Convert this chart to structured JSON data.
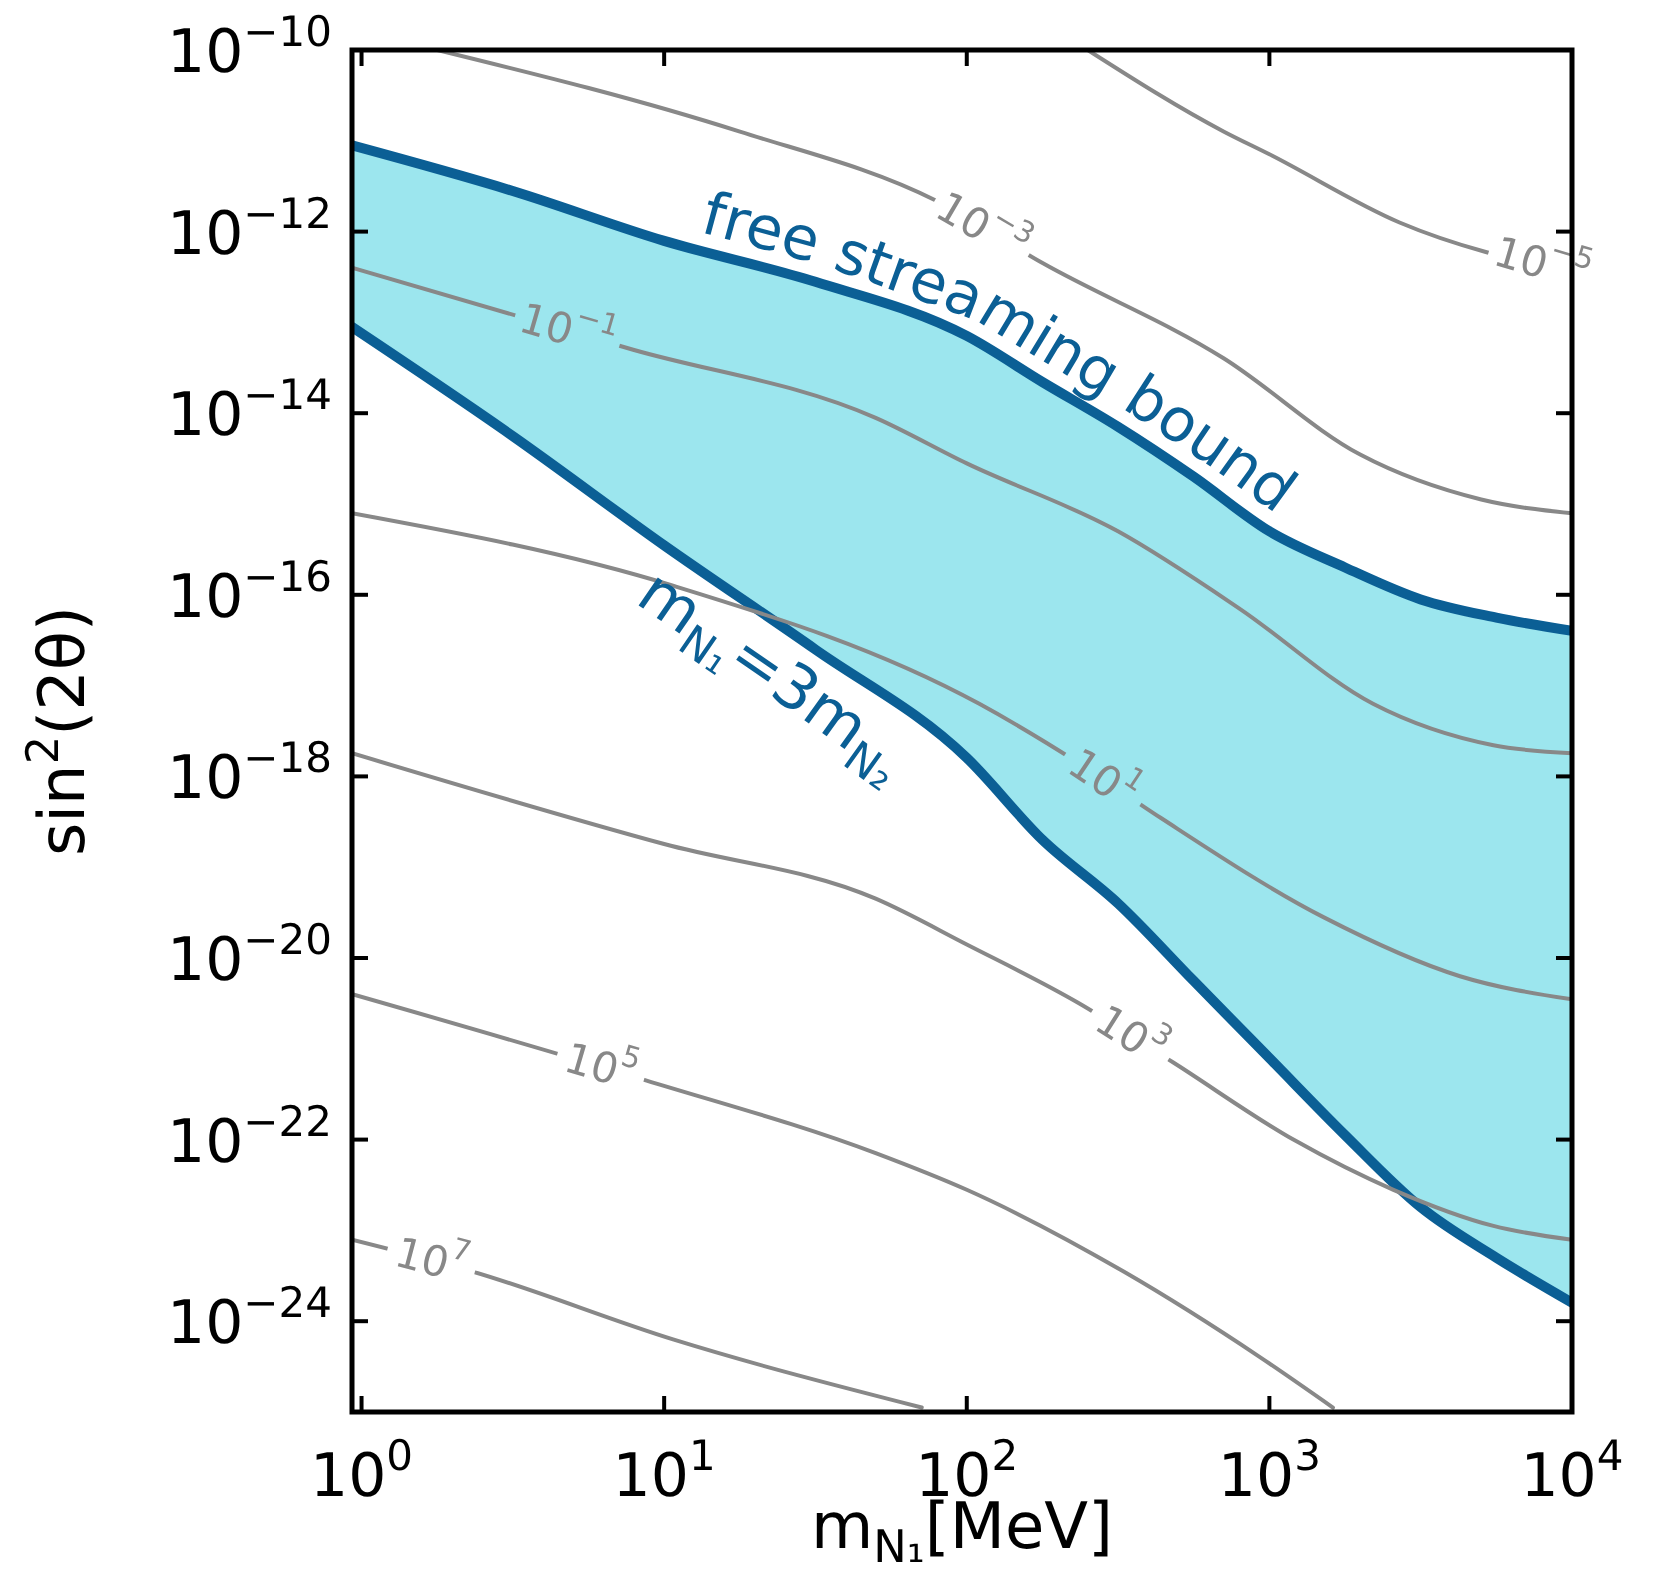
{
  "chart_data": {
    "type": "line",
    "xlabel": "m$_{N₁}$[MeV]",
    "ylabel": "sin$^{2}$(2θ)",
    "log": "xy",
    "xlim": [
      0.93,
      10000
    ],
    "ylim": [
      1e-25,
      1e-10
    ],
    "xticks": [
      {
        "value": 1,
        "label": "10$^{0}$"
      },
      {
        "value": 10,
        "label": "10$^{1}$"
      },
      {
        "value": 100,
        "label": "10$^{2}$"
      },
      {
        "value": 1000,
        "label": "10$^{3}$"
      },
      {
        "value": 10000,
        "label": "10$^{4}$"
      }
    ],
    "yticks": [
      {
        "value": 1e-10,
        "label": "10$^{−10}$"
      },
      {
        "value": 1e-12,
        "label": "10$^{−12}$"
      },
      {
        "value": 1e-14,
        "label": "10$^{−14}$"
      },
      {
        "value": 1e-16,
        "label": "10$^{−16}$"
      },
      {
        "value": 1e-18,
        "label": "10$^{−18}$"
      },
      {
        "value": 1e-20,
        "label": "10$^{−20}$"
      },
      {
        "value": 1e-22,
        "label": "10$^{−22}$"
      },
      {
        "value": 1e-24,
        "label": "10$^{−24}$"
      }
    ],
    "series": [
      {
        "type": "line",
        "name": "free streaming bound",
        "color": "#0b5f95",
        "x": [
          0.93,
          3.16,
          10,
          31.6,
          100,
          178,
          316,
          562,
          1000,
          1778,
          3162,
          5623,
          10000
        ],
        "values": [
          8.9e-12,
          2.8e-12,
          7.9e-13,
          2.8e-13,
          7.1e-14,
          2.2e-14,
          7.1e-15,
          2e-15,
          5e-16,
          2e-16,
          8.9e-17,
          5.6e-17,
          4e-17
        ],
        "lower": [
          8.9e-14,
          5.6e-15,
          3.5e-16,
          2.5e-17,
          1.6e-18,
          2e-19,
          4e-20,
          5.6e-21,
          7.9e-22,
          1.12e-22,
          1.8e-23,
          5e-24,
          1.6e-24
        ],
        "upper": [
          8.9e-12,
          2.8e-12,
          7.9e-13,
          2.8e-13,
          7.1e-14,
          2.2e-14,
          7.1e-15,
          2e-15,
          5e-16,
          2e-16,
          8.9e-17,
          5.6e-17,
          4e-17
        ]
      },
      {
        "type": "line",
        "name": "m$_{N₁}$=3m$_{N₂}$",
        "color": "#0b5f95",
        "x": [
          0.93,
          3.16,
          10,
          31.6,
          100,
          178,
          316,
          562,
          1000,
          1778,
          3162,
          5623,
          10000
        ],
        "values": [
          8.9e-14,
          5.6e-15,
          3.5e-16,
          2.5e-17,
          1.6e-18,
          2e-19,
          4e-20,
          5.6e-21,
          7.9e-22,
          1.12e-22,
          1.8e-23,
          5e-24,
          1.6e-24
        ]
      },
      {
        "name": "10$^{−5}$",
        "color": "#888888",
        "x": [
          251,
          708,
          1000,
          2692,
          10000
        ],
        "values": [
          1e-10,
          1.26e-11,
          7.1e-12,
          1.26e-12,
          3.5e-13
        ]
      },
      {
        "name": "10$^{−3}$",
        "color": "#888888",
        "x": [
          1.78,
          17.8,
          79,
          178,
          708,
          1995,
          5012,
          10000
        ],
        "values": [
          1e-10,
          1.26e-11,
          2.2e-12,
          4.5e-13,
          4e-14,
          3.5e-15,
          1.12e-15,
          7.9e-16
        ]
      },
      {
        "name": "10$^{−1}$",
        "color": "#888888",
        "x": [
          0.93,
          7.9,
          50,
          100,
          316,
          794,
          2200,
          5500,
          10000
        ],
        "values": [
          4e-13,
          5e-14,
          8.9e-15,
          2.8e-15,
          5e-16,
          7.1e-17,
          6.3e-18,
          2.2e-18,
          1.8e-18
        ]
      },
      {
        "name": "10$^{1}$",
        "color": "#888888",
        "x": [
          0.93,
          10.7,
          110,
          234,
          437,
          1514,
          4266,
          10000
        ],
        "values": [
          7.9e-16,
          1.26e-16,
          6.3e-18,
          1.41e-18,
          3.5e-19,
          2.8e-20,
          6.3e-21,
          3.5e-21
        ]
      },
      {
        "name": "10$^{3}$",
        "color": "#888888",
        "x": [
          0.93,
          10,
          50,
          100,
          234,
          480,
          1200,
          2570,
          5500,
          10000
        ],
        "values": [
          1.8e-18,
          1.8e-19,
          4.5e-20,
          1.41e-20,
          3.2e-21,
          7.1e-22,
          1e-22,
          2.8e-23,
          1.12e-23,
          7.9e-24
        ]
      },
      {
        "name": "10$^{5}$",
        "color": "#888888",
        "x": [
          0.93,
          8.7,
          50,
          100,
          331,
          933,
          1622
        ],
        "values": [
          4e-21,
          4.5e-22,
          7.1e-23,
          2.8e-23,
          3.5e-24,
          4e-25,
          1.12e-25
        ]
      },
      {
        "name": "10$^{7}$",
        "color": "#888888",
        "x": [
          0.93,
          2.34,
          10.7,
          71
        ],
        "values": [
          7.9e-24,
          3.5e-24,
          6.3e-25,
          1.12e-25
        ]
      }
    ]
  }
}
